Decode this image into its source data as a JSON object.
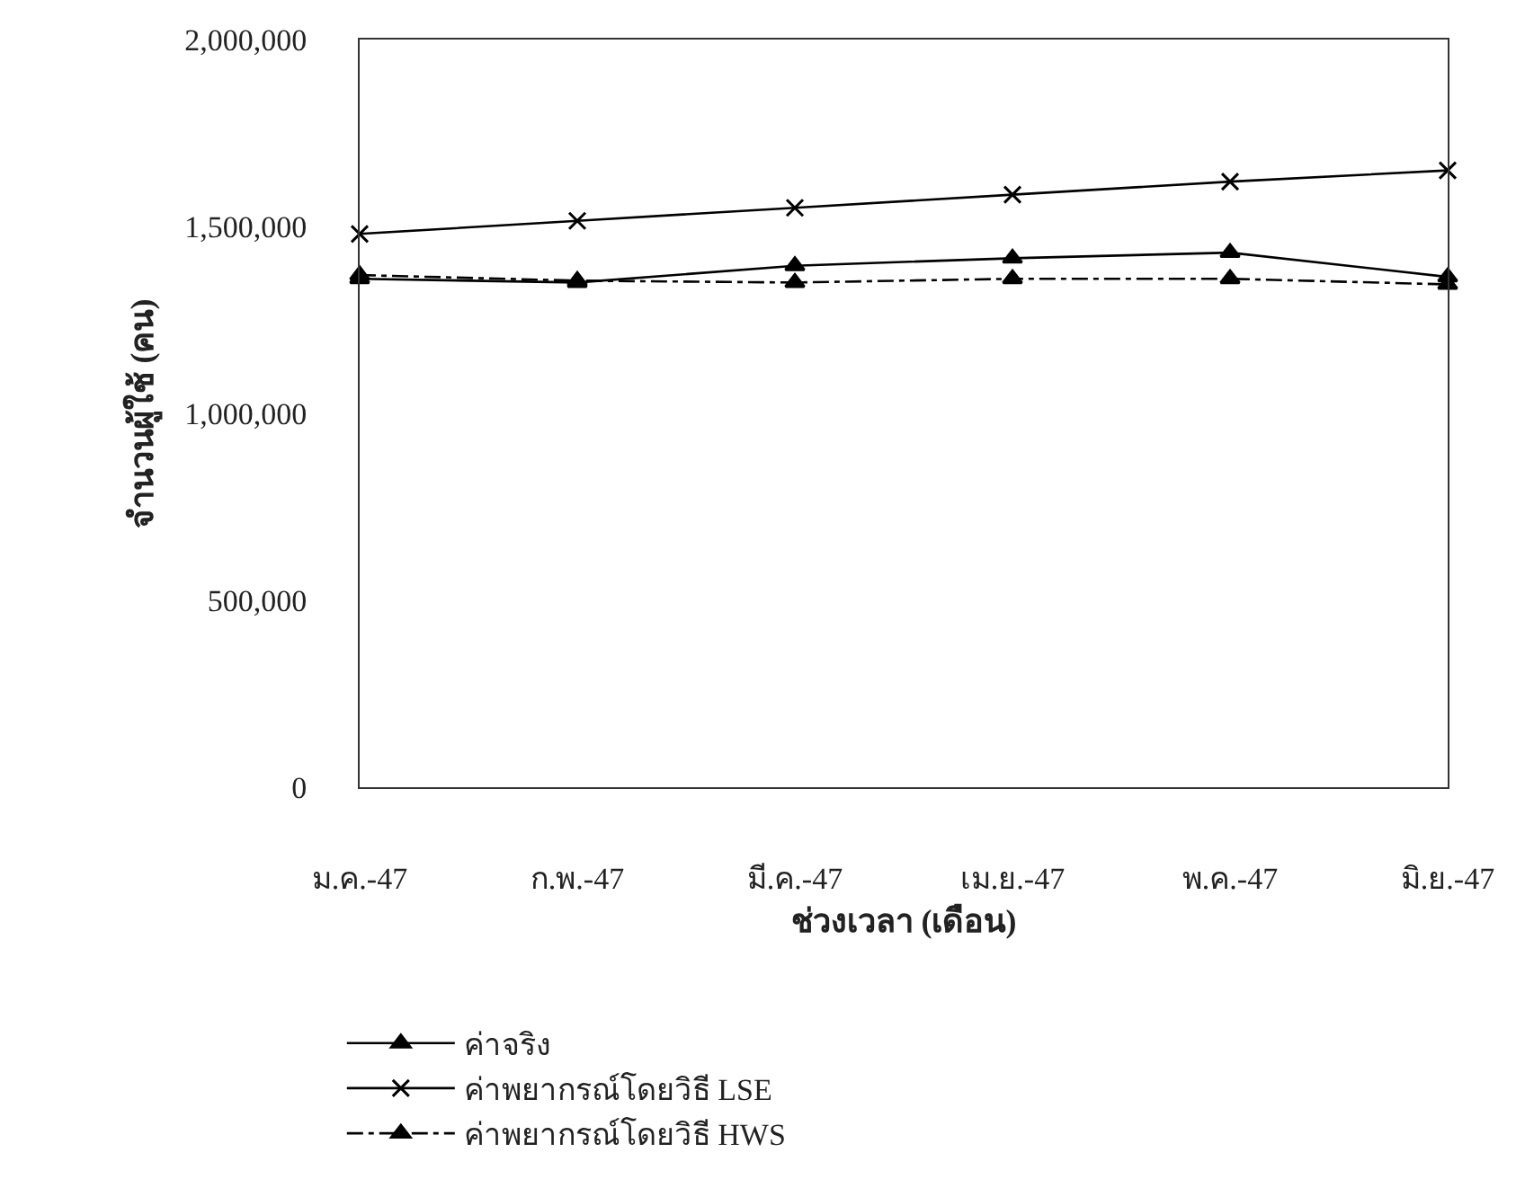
{
  "chart_data": {
    "type": "line",
    "xlabel": "ช่วงเวลา (เดือน)",
    "ylabel": "จำนวนผู้ใช้ (คน)",
    "categories": [
      "ม.ค.-47",
      "ก.พ.-47",
      "มี.ค.-47",
      "เม.ย.-47",
      "พ.ค.-47",
      "มิ.ย.-47"
    ],
    "ylim": [
      0,
      2000000
    ],
    "yticks": [
      {
        "value": 0,
        "label": "0"
      },
      {
        "value": 500000,
        "label": "500,000"
      },
      {
        "value": 1000000,
        "label": "1,000,000"
      },
      {
        "value": 1500000,
        "label": "1,500,000"
      },
      {
        "value": 2000000,
        "label": "2,000,000"
      }
    ],
    "legend": "bottom left",
    "series": [
      {
        "name": "ค่าจริง",
        "color": "#000000",
        "marker": "triangle",
        "line_style": "solid",
        "values": [
          1360000,
          1350000,
          1395000,
          1415000,
          1430000,
          1365000
        ]
      },
      {
        "name": "ค่าพยากรณ์โดยวิธี LSE",
        "color": "#000000",
        "marker": "cross",
        "line_style": "solid",
        "values": [
          1480000,
          1515000,
          1550000,
          1585000,
          1620000,
          1650000
        ]
      },
      {
        "name": "ค่าพยากรณ์โดยวิธี HWS",
        "color": "#000000",
        "marker": "triangle",
        "line_style": "dashed",
        "values": [
          1370000,
          1355000,
          1350000,
          1360000,
          1360000,
          1345000
        ]
      }
    ]
  }
}
